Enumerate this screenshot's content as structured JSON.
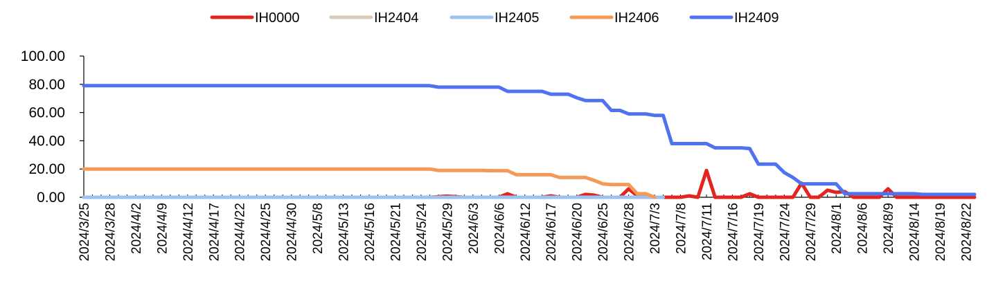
{
  "chart_data": {
    "type": "line",
    "title": "",
    "xlabel": "",
    "ylabel": "",
    "ylim": [
      0,
      100
    ],
    "yticks": [
      "0.00",
      "20.00",
      "40.00",
      "60.00",
      "80.00",
      "100.00"
    ],
    "grid": false,
    "legend_position": "top-center",
    "x_tick_labels": [
      "2024/3/25",
      "2024/3/28",
      "2024/4/2",
      "2024/4/9",
      "2024/4/12",
      "2024/4/17",
      "2024/4/22",
      "2024/4/25",
      "2024/4/30",
      "2024/5/8",
      "2024/5/13",
      "2024/5/16",
      "2024/5/21",
      "2024/5/24",
      "2024/5/29",
      "2024/6/3",
      "2024/6/6",
      "2024/6/12",
      "2024/6/17",
      "2024/6/20",
      "2024/6/25",
      "2024/6/28",
      "2024/7/3",
      "2024/7/8",
      "2024/7/11",
      "2024/7/16",
      "2024/7/19",
      "2024/7/24",
      "2024/7/29",
      "2024/8/1",
      "2024/8/6",
      "2024/8/9",
      "2024/8/14",
      "2024/8/19",
      "2024/8/22"
    ],
    "series": [
      {
        "name": "IH0000",
        "color": "#e3251f",
        "points": [
          [
            0,
            0
          ],
          [
            40,
            0
          ],
          [
            42,
            0.8
          ],
          [
            44,
            0
          ],
          [
            48,
            0
          ],
          [
            49,
            2.5
          ],
          [
            50,
            0
          ],
          [
            53,
            0
          ],
          [
            54,
            1
          ],
          [
            55,
            0
          ],
          [
            57,
            0
          ],
          [
            58,
            2
          ],
          [
            59,
            1.5
          ],
          [
            60,
            0
          ],
          [
            62,
            0
          ],
          [
            63,
            6
          ],
          [
            64,
            1
          ],
          [
            65,
            2
          ],
          [
            66,
            0
          ],
          [
            69,
            0
          ],
          [
            70,
            1
          ],
          [
            71,
            0
          ],
          [
            72,
            19
          ],
          [
            73,
            0
          ],
          [
            76,
            0
          ],
          [
            77,
            2.5
          ],
          [
            78,
            0
          ],
          [
            82,
            0
          ],
          [
            83,
            10
          ],
          [
            84,
            0
          ],
          [
            85,
            0
          ],
          [
            86,
            5
          ],
          [
            87,
            3.5
          ],
          [
            88,
            4
          ],
          [
            89,
            0
          ],
          [
            92,
            0
          ],
          [
            93,
            6
          ],
          [
            94,
            0
          ],
          [
            103,
            0
          ]
        ]
      },
      {
        "name": "IH2404",
        "color": "#d9cbb5",
        "points": [
          [
            0,
            0
          ],
          [
            12,
            0
          ]
        ]
      },
      {
        "name": "IH2405",
        "color": "#9cc3f0",
        "points": [
          [
            0,
            0
          ],
          [
            58,
            0
          ],
          [
            65,
            0
          ],
          [
            66,
            0
          ],
          [
            67,
            0
          ]
        ]
      },
      {
        "name": "IH2406",
        "color": "#f59a54",
        "points": [
          [
            0,
            20
          ],
          [
            40,
            20
          ],
          [
            41,
            19
          ],
          [
            45,
            19
          ],
          [
            46,
            19
          ],
          [
            47,
            18.8
          ],
          [
            49,
            18.8
          ],
          [
            50,
            16
          ],
          [
            51,
            16
          ],
          [
            53,
            16
          ],
          [
            54,
            16
          ],
          [
            55,
            14
          ],
          [
            57,
            14
          ],
          [
            58,
            14
          ],
          [
            59,
            12
          ],
          [
            60,
            9.5
          ],
          [
            61,
            9
          ],
          [
            62,
            9
          ],
          [
            63,
            9
          ],
          [
            64,
            2.5
          ],
          [
            65,
            2.5
          ],
          [
            66,
            0
          ]
        ]
      },
      {
        "name": "IH2409",
        "color": "#4f72f0",
        "points": [
          [
            0,
            79
          ],
          [
            40,
            79
          ],
          [
            41,
            78
          ],
          [
            46,
            78
          ],
          [
            47,
            78
          ],
          [
            48,
            78
          ],
          [
            49,
            75
          ],
          [
            50,
            75
          ],
          [
            53,
            75
          ],
          [
            54,
            73
          ],
          [
            55,
            73
          ],
          [
            56,
            73
          ],
          [
            57,
            70.5
          ],
          [
            58,
            68.5
          ],
          [
            59,
            68.5
          ],
          [
            60,
            68.5
          ],
          [
            61,
            61.5
          ],
          [
            62,
            61.5
          ],
          [
            63,
            59
          ],
          [
            64,
            59
          ],
          [
            65,
            59
          ],
          [
            66,
            58
          ],
          [
            67,
            58
          ],
          [
            68,
            38
          ],
          [
            69,
            38
          ],
          [
            72,
            38
          ],
          [
            73,
            35
          ],
          [
            74,
            35
          ],
          [
            76,
            35
          ],
          [
            77,
            34.5
          ],
          [
            78,
            23.5
          ],
          [
            79,
            23.5
          ],
          [
            80,
            23.5
          ],
          [
            81,
            17.5
          ],
          [
            82,
            14
          ],
          [
            83,
            9.5
          ],
          [
            84,
            9.5
          ],
          [
            86,
            9.5
          ],
          [
            87,
            9.5
          ],
          [
            88,
            2.5
          ],
          [
            89,
            2.5
          ],
          [
            96,
            2.5
          ],
          [
            97,
            2
          ],
          [
            103,
            2
          ]
        ]
      }
    ]
  }
}
